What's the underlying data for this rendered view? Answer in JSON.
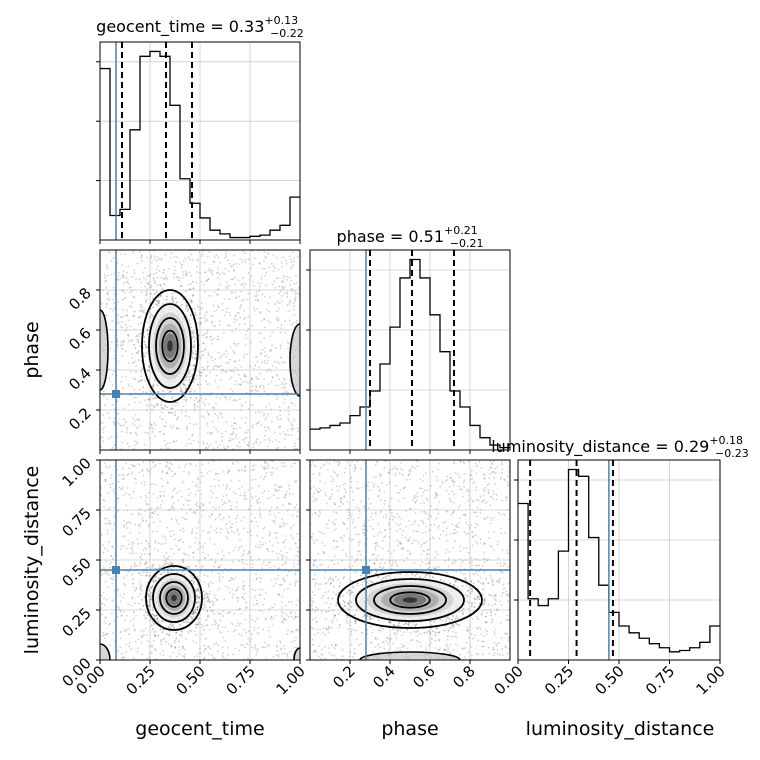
{
  "chart_data": {
    "type": "corner",
    "parameters": [
      "geocent_time",
      "phase",
      "luminosity_distance"
    ],
    "axis_labels": [
      "geocent_time",
      "phase",
      "luminosity_distance"
    ],
    "truths": {
      "geocent_time": 0.08,
      "phase": 0.28,
      "luminosity_distance": 0.45
    },
    "truth_color": "#4682b4",
    "ranges": {
      "geocent_time": [
        0.0,
        1.0
      ],
      "phase": [
        0.0,
        1.0
      ],
      "luminosity_distance": [
        0.0,
        1.0
      ]
    },
    "ticks": {
      "geocent_time": [
        "0.00",
        "0.25",
        "0.50",
        "0.75",
        "1.00"
      ],
      "phase": [
        "0.2",
        "0.4",
        "0.6",
        "0.8"
      ],
      "luminosity_distance": [
        "0.00",
        "0.25",
        "0.50",
        "0.75",
        "1.00"
      ]
    },
    "titles": [
      {
        "param": "geocent_time",
        "name": "geocent_time",
        "median": "0.33",
        "plus": "+0.13",
        "minus": "−0.22"
      },
      {
        "param": "phase",
        "name": "phase",
        "median": "0.51",
        "plus": "+0.21",
        "minus": "−0.21"
      },
      {
        "param": "luminosity_distance",
        "name": "luminosity_distance",
        "median": "0.29",
        "plus": "+0.18",
        "minus": "−0.23"
      }
    ],
    "histograms": {
      "geocent_time": {
        "bins": [
          0.0,
          0.05,
          0.1,
          0.15,
          0.2,
          0.25,
          0.3,
          0.35,
          0.4,
          0.45,
          0.5,
          0.55,
          0.6,
          0.65,
          0.7,
          0.75,
          0.8,
          0.85,
          0.9,
          0.95,
          1.0
        ],
        "counts": [
          140,
          20,
          25,
          90,
          150,
          154,
          150,
          110,
          50,
          30,
          18,
          8,
          5,
          2,
          2,
          3,
          4,
          8,
          12,
          35
        ],
        "quantiles": [
          0.11,
          0.33,
          0.46
        ]
      },
      "phase": {
        "bins": [
          0.0,
          0.05,
          0.1,
          0.15,
          0.2,
          0.25,
          0.3,
          0.35,
          0.4,
          0.45,
          0.5,
          0.55,
          0.6,
          0.65,
          0.7,
          0.75,
          0.8,
          0.85,
          0.9,
          0.95,
          1.0
        ],
        "counts": [
          17,
          18,
          20,
          22,
          28,
          35,
          48,
          70,
          100,
          140,
          155,
          140,
          110,
          80,
          48,
          35,
          20,
          10,
          4,
          2
        ],
        "quantiles": [
          0.3,
          0.51,
          0.72
        ]
      },
      "luminosity_distance": {
        "bins": [
          0.0,
          0.05,
          0.1,
          0.15,
          0.2,
          0.25,
          0.3,
          0.35,
          0.4,
          0.45,
          0.5,
          0.55,
          0.6,
          0.65,
          0.7,
          0.75,
          0.8,
          0.85,
          0.9,
          0.95,
          1.0
        ],
        "counts": [
          115,
          45,
          40,
          45,
          80,
          140,
          135,
          90,
          55,
          35,
          25,
          20,
          16,
          12,
          9,
          6,
          7,
          9,
          13,
          25
        ],
        "quantiles": [
          0.06,
          0.29,
          0.47
        ]
      }
    },
    "contour_peaks": [
      {
        "x": "geocent_time",
        "y": "phase",
        "center": [
          0.35,
          0.52
        ]
      },
      {
        "x": "geocent_time",
        "y": "luminosity_distance",
        "center": [
          0.37,
          0.31
        ]
      },
      {
        "x": "phase",
        "y": "luminosity_distance",
        "center": [
          0.5,
          0.3
        ]
      }
    ]
  }
}
